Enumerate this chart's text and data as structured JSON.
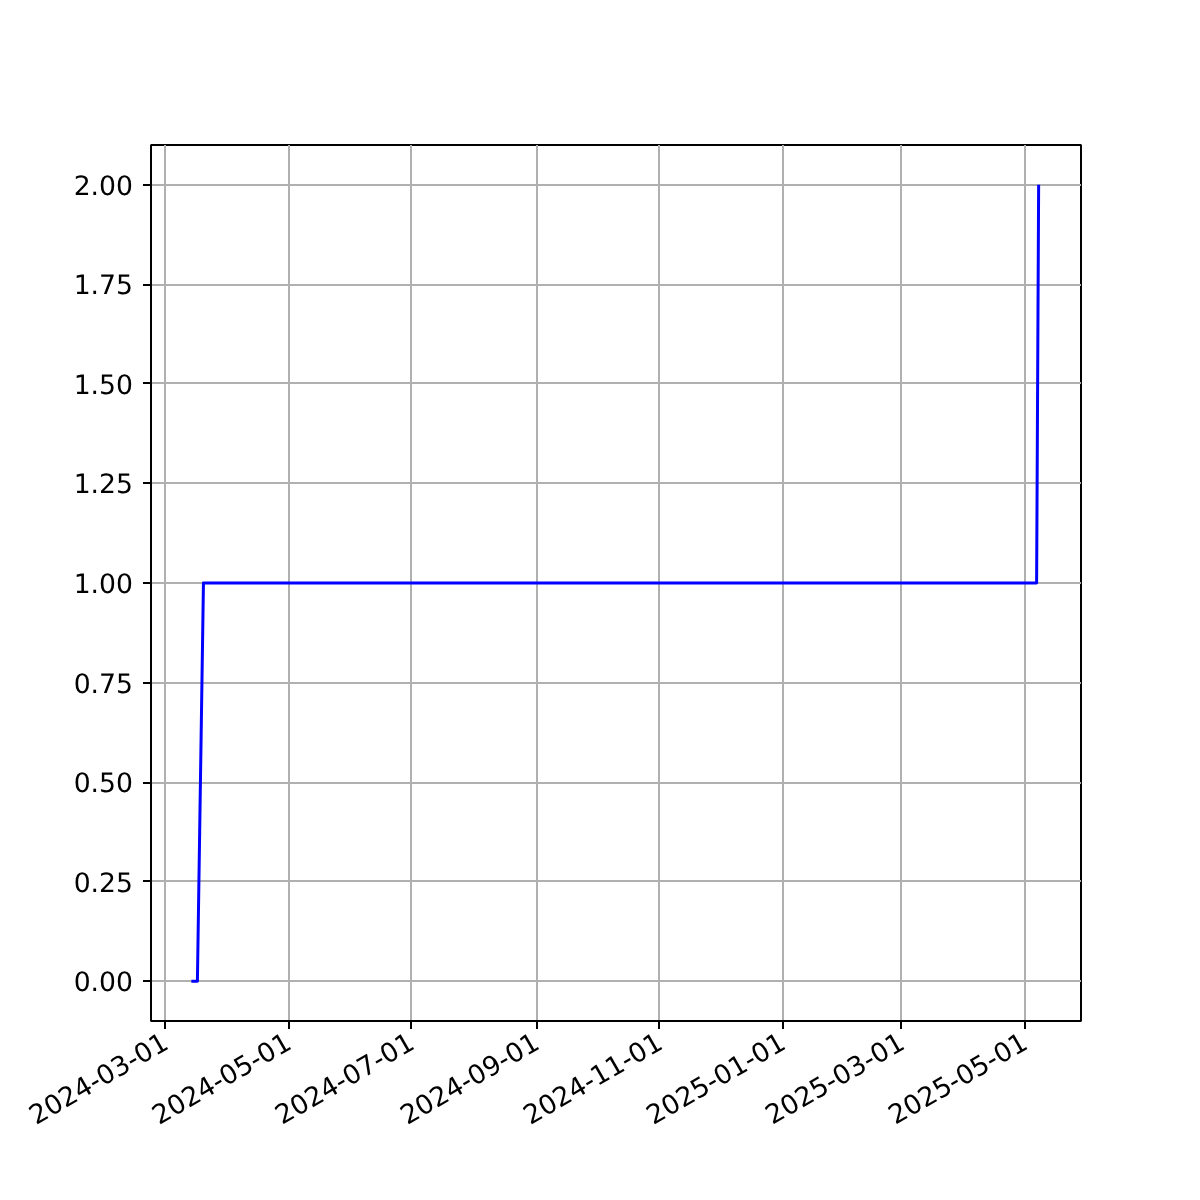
{
  "chart_data": {
    "type": "line",
    "x": [
      "2024-03-14",
      "2024-03-17",
      "2024-03-20",
      "2025-05-07",
      "2025-05-08"
    ],
    "series": [
      {
        "color": "#0000ff",
        "values": [
          0,
          0,
          1,
          1,
          2
        ]
      }
    ],
    "xlim": [
      "2024-02-23",
      "2025-05-29"
    ],
    "xticks": [
      "2024-03-01",
      "2024-05-01",
      "2024-07-01",
      "2024-09-01",
      "2024-11-01",
      "2025-01-01",
      "2025-03-01",
      "2025-05-01"
    ],
    "ylim": [
      -0.1,
      2.1
    ],
    "yticks": [
      {
        "value": 0,
        "label": "0.00"
      },
      {
        "value": 0.25,
        "label": "0.25"
      },
      {
        "value": 0.5,
        "label": "0.50"
      },
      {
        "value": 0.75,
        "label": "0.75"
      },
      {
        "value": 1,
        "label": "1.00"
      },
      {
        "value": 1.25,
        "label": "1.25"
      },
      {
        "value": 1.5,
        "label": "1.50"
      },
      {
        "value": 1.75,
        "label": "1.75"
      },
      {
        "value": 2,
        "label": "2.00"
      }
    ],
    "grid": true
  }
}
